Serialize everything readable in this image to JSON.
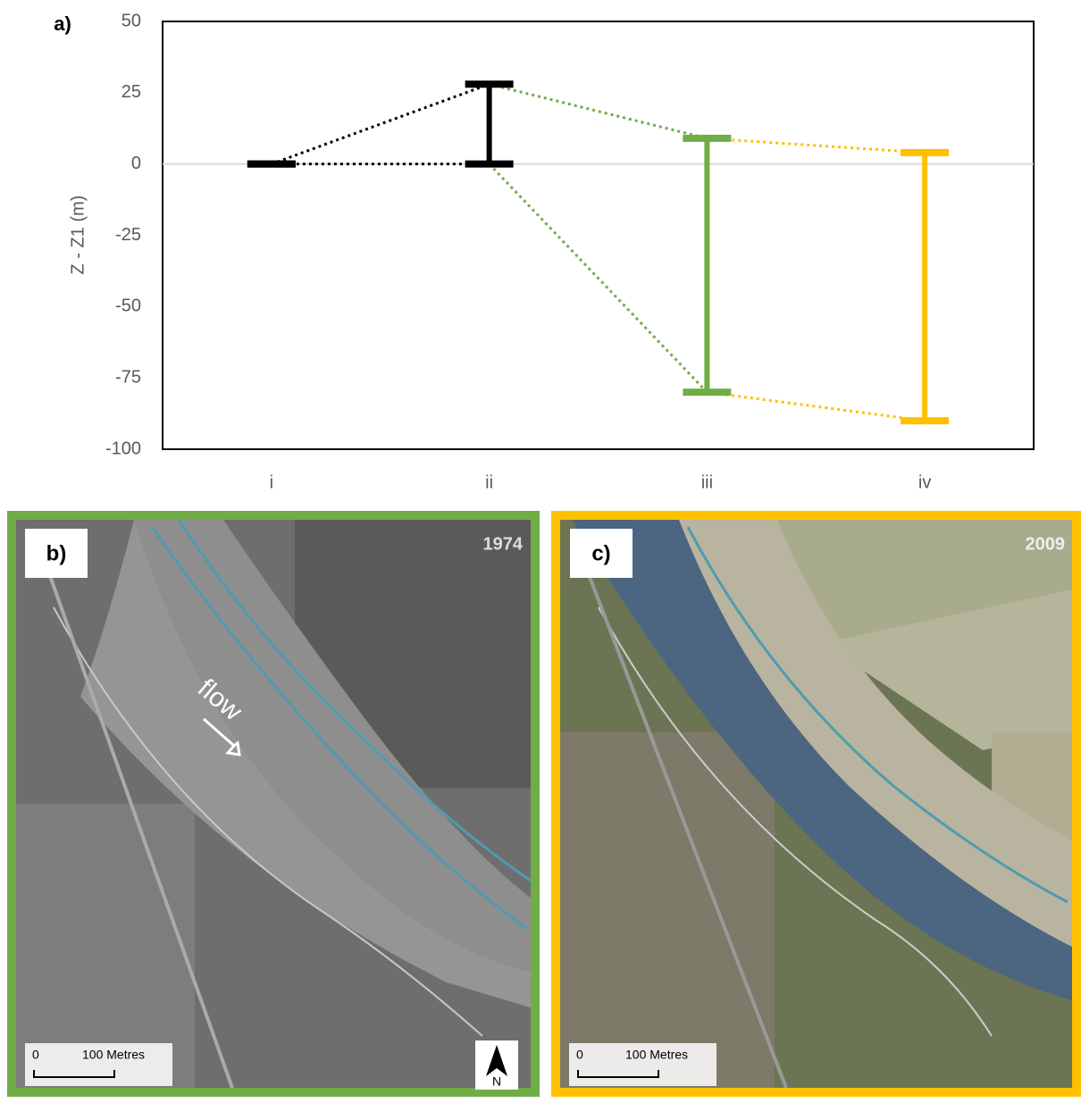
{
  "chart_data": {
    "type": "range",
    "panel_label": "a)",
    "y_label": "Z - Z1 (m)",
    "categories": [
      "i",
      "ii",
      "iii",
      "iv"
    ],
    "low": [
      0,
      0,
      -80,
      -90
    ],
    "high": [
      0,
      28,
      9,
      4
    ],
    "colors": [
      "#000000",
      "#000000",
      "#70ad47",
      "#ffc000"
    ],
    "ylim": [
      -100,
      50
    ],
    "yticks": [
      -100,
      -75,
      -50,
      -25,
      0,
      25,
      50
    ],
    "zero_line": true
  },
  "panels": [
    {
      "label": "b)",
      "year": "1974",
      "flow": "flow",
      "scale_zero": "0",
      "scale_text": "100 Metres",
      "north": "N"
    },
    {
      "label": "c)",
      "year": "2009",
      "scale_zero": "0",
      "scale_text": "100 Metres"
    }
  ]
}
